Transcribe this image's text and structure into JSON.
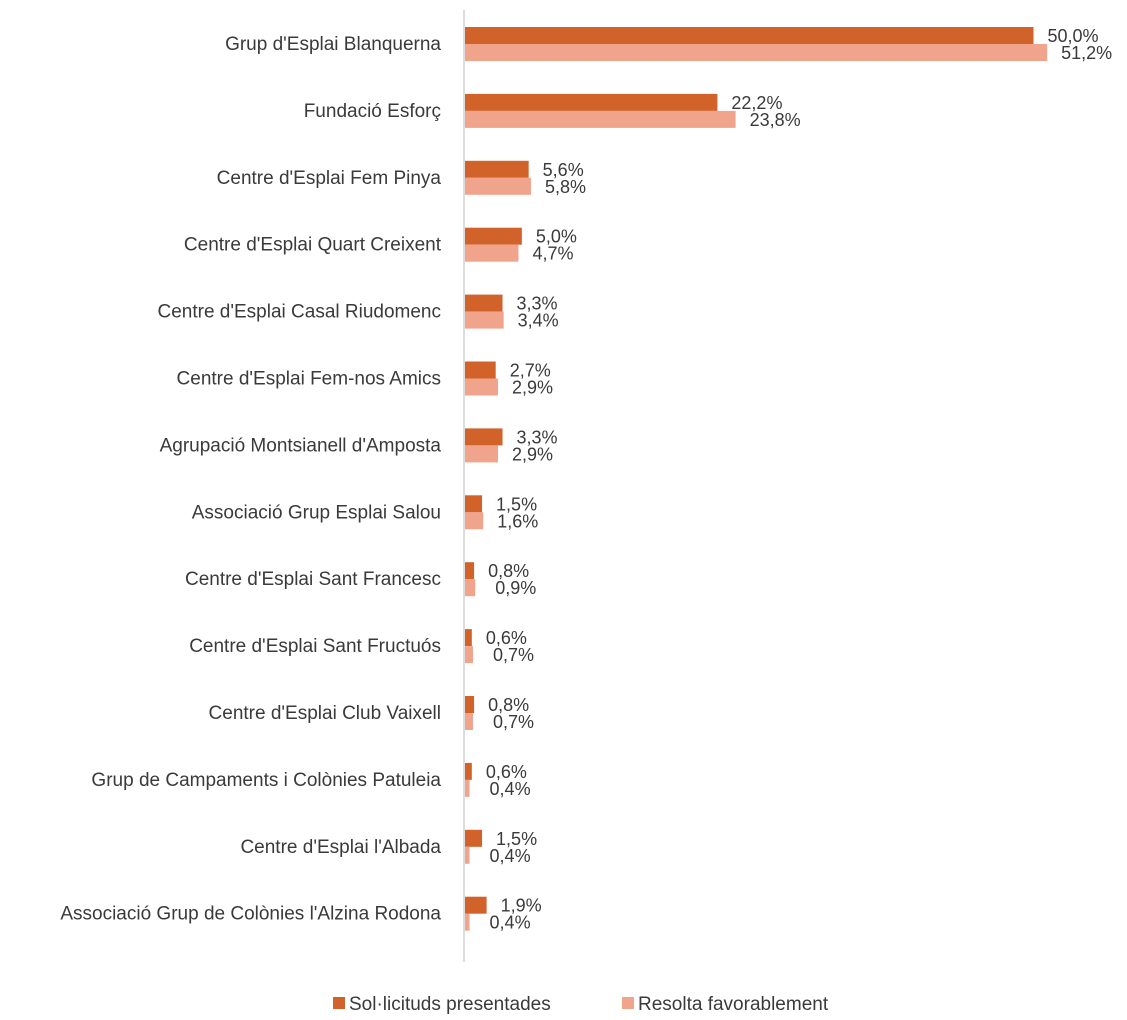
{
  "chart_data": {
    "type": "bar",
    "orientation": "horizontal",
    "title": "",
    "xlabel": "",
    "ylabel": "",
    "grid": false,
    "legend": "bottom",
    "categories": [
      "Grup d'Esplai Blanquerna",
      "Fundació Esforç",
      "Centre d'Esplai Fem Pinya",
      "Centre d'Esplai Quart Creixent",
      "Centre d'Esplai Casal Riudomenc",
      "Centre d'Esplai Fem-nos Amics",
      "Agrupació Montsianell d'Amposta",
      "Associació Grup Esplai Salou",
      "Centre d'Esplai Sant Francesc",
      "Centre d'Esplai Sant Fructuós",
      "Centre d'Esplai Club Vaixell",
      "Grup de Campaments i Colònies Patuleia",
      "Centre d'Esplai l'Albada",
      "Associació Grup de Colònies l'Alzina Rodona"
    ],
    "series": [
      {
        "name": "Sol·licituds presentades",
        "color": "#D0622A",
        "values": [
          50.0,
          22.2,
          5.6,
          5.0,
          3.3,
          2.7,
          3.3,
          1.5,
          0.8,
          0.6,
          0.8,
          0.6,
          1.5,
          1.9
        ],
        "labels": [
          "50,0%",
          "22,2%",
          "5,6%",
          "5,0%",
          "3,3%",
          "2,7%",
          "3,3%",
          "1,5%",
          "0,8%",
          "0,6%",
          "0,8%",
          "0,6%",
          "1,5%",
          "1,9%"
        ]
      },
      {
        "name": "Resolta favorablement",
        "color": "#F0A48C",
        "values": [
          51.2,
          23.8,
          5.8,
          4.7,
          3.4,
          2.9,
          2.9,
          1.6,
          0.9,
          0.7,
          0.7,
          0.4,
          0.4,
          0.4
        ],
        "labels": [
          "51,2%",
          "23,8%",
          "5,8%",
          "4,7%",
          "3,4%",
          "2,9%",
          "2,9%",
          "1,6%",
          "0,9%",
          "0,7%",
          "0,7%",
          "0,4%",
          "0,4%",
          "0,4%"
        ]
      }
    ],
    "xlim": [
      0,
      100
    ]
  }
}
